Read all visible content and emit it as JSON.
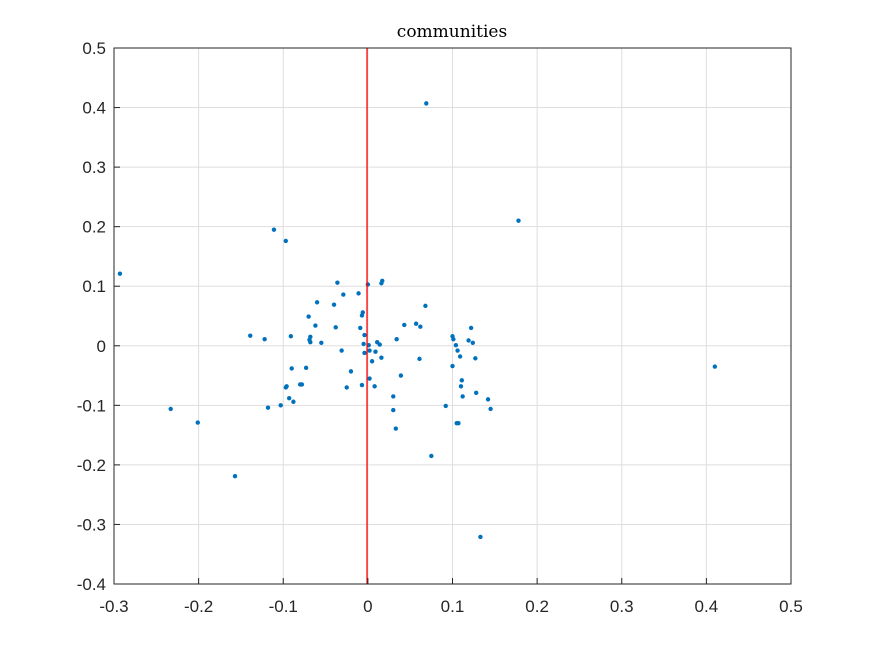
{
  "chart_data": {
    "type": "scatter",
    "title": "communities",
    "xlabel": "",
    "ylabel": "",
    "xlim": [
      -0.3,
      0.5
    ],
    "ylim": [
      -0.4,
      0.5
    ],
    "xticks": [
      "-0.3",
      "-0.2",
      "-0.1",
      "0",
      "0.1",
      "0.2",
      "0.3",
      "0.4",
      "0.5"
    ],
    "yticks": [
      "0.5",
      "0.4",
      "0.3",
      "0.2",
      "0.1",
      "0",
      "-0.1",
      "-0.2",
      "-0.3",
      "-0.4"
    ],
    "grid": true,
    "point_color": "#0072BD",
    "vline": {
      "x": -0.001,
      "color": "#FF0000"
    },
    "series": [
      {
        "points": [
          [
            0.069,
            0.407
          ],
          [
            0.178,
            0.21
          ],
          [
            -0.293,
            0.121
          ],
          [
            -0.111,
            0.195
          ],
          [
            -0.097,
            0.176
          ],
          [
            0.41,
            -0.035
          ],
          [
            -0.233,
            -0.106
          ],
          [
            -0.201,
            -0.129
          ],
          [
            -0.157,
            -0.219
          ],
          [
            0.133,
            -0.321
          ],
          [
            0.075,
            -0.185
          ],
          [
            -0.036,
            0.106
          ],
          [
            0.016,
            0.105
          ],
          [
            0.017,
            0.109
          ],
          [
            0,
            0.103
          ],
          [
            -0.011,
            0.088
          ],
          [
            -0.029,
            0.086
          ],
          [
            -0.06,
            0.073
          ],
          [
            -0.04,
            0.069
          ],
          [
            0.068,
            0.067
          ],
          [
            -0.07,
            0.049
          ],
          [
            -0.006,
            0.056
          ],
          [
            -0.007,
            0.051
          ],
          [
            -0.038,
            0.031
          ],
          [
            -0.062,
            0.034
          ],
          [
            -0.009,
            0.03
          ],
          [
            -0.004,
            0.018
          ],
          [
            -0.005,
            0.003
          ],
          [
            -0.139,
            0.017
          ],
          [
            -0.091,
            0.016
          ],
          [
            -0.122,
            0.011
          ],
          [
            -0.068,
            0.015
          ],
          [
            -0.069,
            0.01
          ],
          [
            -0.068,
            0.006
          ],
          [
            -0.055,
            0.005
          ],
          [
            -0.031,
            -0.008
          ],
          [
            0.057,
            0.037
          ],
          [
            0.043,
            0.035
          ],
          [
            0.062,
            0.032
          ],
          [
            0.034,
            0.011
          ],
          [
            0.1,
            0.016
          ],
          [
            0.101,
            0.011
          ],
          [
            0.122,
            0.03
          ],
          [
            0.119,
            0.009
          ],
          [
            0.124,
            0.005
          ],
          [
            0.104,
            0.001
          ],
          [
            0.106,
            -0.008
          ],
          [
            0.109,
            -0.018
          ],
          [
            0.127,
            -0.021
          ],
          [
            0.061,
            -0.022
          ],
          [
            0.1,
            -0.034
          ],
          [
            0.001,
            0.001
          ],
          [
            0.002,
            -0.008
          ],
          [
            0.011,
            0.006
          ],
          [
            0.014,
            0.002
          ],
          [
            0.009,
            -0.01
          ],
          [
            0.016,
            -0.02
          ],
          [
            0.005,
            -0.026
          ],
          [
            -0.004,
            -0.012
          ],
          [
            0.039,
            -0.05
          ],
          [
            0.002,
            -0.055
          ],
          [
            0.008,
            -0.068
          ],
          [
            -0.02,
            -0.043
          ],
          [
            -0.025,
            -0.07
          ],
          [
            -0.007,
            -0.066
          ],
          [
            -0.073,
            -0.037
          ],
          [
            -0.09,
            -0.038
          ],
          [
            -0.096,
            -0.068
          ],
          [
            -0.097,
            -0.07
          ],
          [
            -0.08,
            -0.065
          ],
          [
            -0.078,
            -0.065
          ],
          [
            -0.093,
            -0.088
          ],
          [
            -0.088,
            -0.094
          ],
          [
            -0.103,
            -0.1
          ],
          [
            -0.118,
            -0.104
          ],
          [
            0.03,
            -0.085
          ],
          [
            0.03,
            -0.108
          ],
          [
            0.033,
            -0.139
          ],
          [
            0.092,
            -0.101
          ],
          [
            0.111,
            -0.058
          ],
          [
            0.11,
            -0.068
          ],
          [
            0.112,
            -0.085
          ],
          [
            0.128,
            -0.079
          ],
          [
            0.142,
            -0.09
          ],
          [
            0.145,
            -0.106
          ],
          [
            0.105,
            -0.13
          ],
          [
            0.107,
            -0.13
          ]
        ]
      }
    ]
  }
}
